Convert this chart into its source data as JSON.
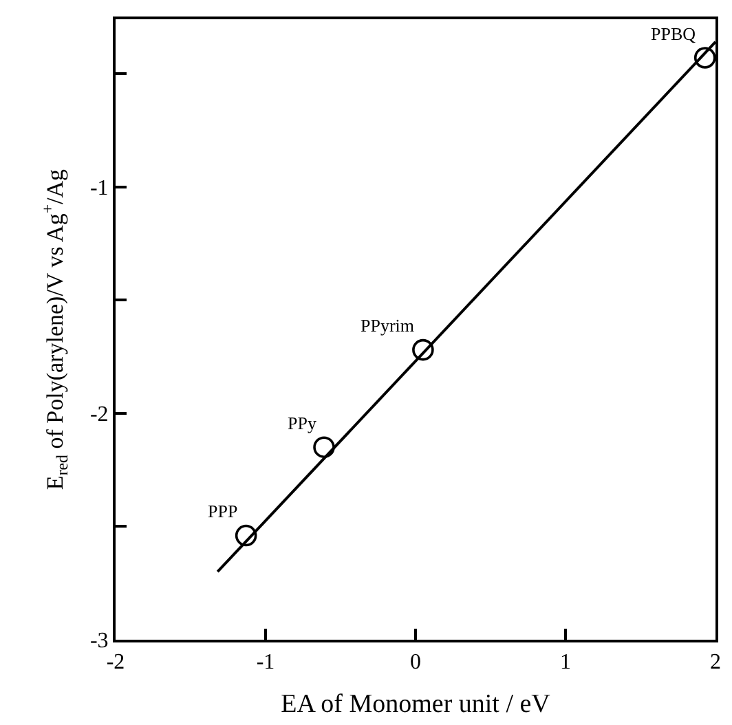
{
  "chart_data": {
    "type": "scatter",
    "xlabel": "EA of Monomer unit / eV",
    "ylabel": "E$_{red}$ of Poly(arylene)/V vs Ag$^{+}$/Ag",
    "xlim": [
      -2,
      2
    ],
    "ylim": [
      -3,
      -0.26
    ],
    "xticks": [
      -2,
      -1,
      0,
      1,
      2
    ],
    "yticks": [
      -3,
      {
        "value": -2.5,
        "label": null
      },
      -2,
      {
        "value": -1.5,
        "label": null
      },
      -1,
      {
        "value": -0.5,
        "label": null
      }
    ],
    "series": [
      {
        "marker": "circle",
        "color": "#000000",
        "x": [
          -1.13,
          -0.61,
          0.05,
          1.93
        ],
        "values": [
          -2.54,
          -2.15,
          -1.72,
          -0.43
        ]
      },
      {
        "type": "line",
        "color": "#000000",
        "x": [
          -1.32,
          2.0
        ],
        "values": [
          -2.7,
          -0.36
        ]
      }
    ],
    "annotations": [
      {
        "text": "PPP",
        "x": -1.13,
        "y": -2.54
      },
      {
        "text": "PPy",
        "x": -0.61,
        "y": -2.15
      },
      {
        "text": "PPyrim",
        "x": 0.05,
        "y": -1.72
      },
      {
        "text": "PPBQ",
        "x": 1.93,
        "y": -0.43
      }
    ]
  }
}
